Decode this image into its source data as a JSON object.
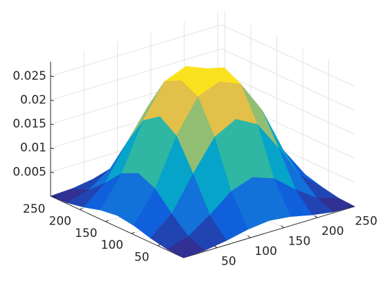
{
  "chart_data": {
    "type": "surface",
    "x": [
      0,
      32,
      64,
      96,
      128,
      160,
      192,
      224,
      256
    ],
    "y": [
      0,
      32,
      64,
      96,
      128,
      160,
      192,
      224,
      256
    ],
    "z": [
      [
        0,
        0.0002,
        0.0009,
        0.0019,
        0.0024,
        0.0019,
        0.0009,
        0.0002,
        0
      ],
      [
        0.0002,
        0.0015,
        0.0046,
        0.0082,
        0.0098,
        0.0082,
        0.0046,
        0.0015,
        0.0002
      ],
      [
        0.0009,
        0.0046,
        0.0116,
        0.0179,
        0.0203,
        0.0179,
        0.0116,
        0.0046,
        0.0009
      ],
      [
        0.0019,
        0.0082,
        0.0179,
        0.0247,
        0.0265,
        0.0247,
        0.0179,
        0.0082,
        0.0019
      ],
      [
        0.0024,
        0.0098,
        0.0203,
        0.0265,
        0.0275,
        0.0265,
        0.0203,
        0.0098,
        0.0024
      ],
      [
        0.0019,
        0.0082,
        0.0179,
        0.0247,
        0.0265,
        0.0247,
        0.0179,
        0.0082,
        0.0019
      ],
      [
        0.0009,
        0.0046,
        0.0116,
        0.0179,
        0.0203,
        0.0179,
        0.0116,
        0.0046,
        0.0009
      ],
      [
        0.0002,
        0.0015,
        0.0046,
        0.0082,
        0.0098,
        0.0082,
        0.0046,
        0.0015,
        0.0002
      ],
      [
        0,
        0.0002,
        0.0009,
        0.0019,
        0.0024,
        0.0019,
        0.0009,
        0.0002,
        0
      ]
    ],
    "xlim": [
      0,
      256
    ],
    "ylim": [
      0,
      256
    ],
    "zlim": [
      0,
      0.028
    ],
    "xticks": [
      50,
      100,
      150,
      200,
      250
    ],
    "yticks": [
      50,
      100,
      150,
      200,
      250
    ],
    "zticks": [
      0.005,
      0.01,
      0.015,
      0.02,
      0.025
    ],
    "grid": true,
    "colormap": [
      "#352a87",
      "#0f5cdd",
      "#1481d6",
      "#06a4ca",
      "#2eb7a4",
      "#87bf77",
      "#d1bb59",
      "#fec832",
      "#f9fb0e"
    ]
  }
}
